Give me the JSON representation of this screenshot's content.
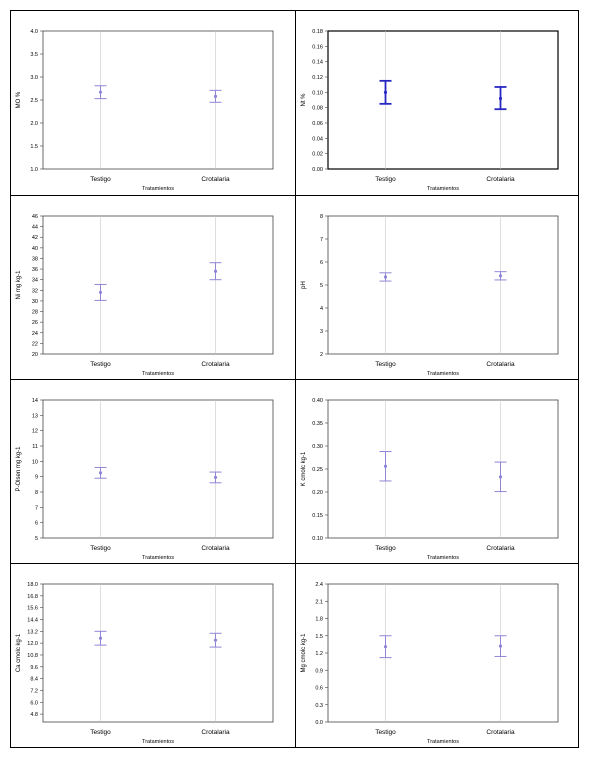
{
  "chart_data": [
    {
      "type": "errorbar",
      "xlabel": "Tratamientos",
      "ylabel": "MO %",
      "categories": [
        "Testigo",
        "Crotalaria"
      ],
      "ylim": [
        1.0,
        4.0
      ],
      "yticks": [
        "1.0",
        "1.5",
        "2.0",
        "2.5",
        "3.0",
        "3.5",
        "4.0"
      ],
      "means": [
        2.67,
        2.58
      ],
      "lower": [
        2.53,
        2.45
      ],
      "upper": [
        2.81,
        2.71
      ],
      "color": "#8f86d6"
    },
    {
      "type": "errorbar",
      "xlabel": "Tratamientos",
      "ylabel": "Nt %",
      "categories": [
        "Testigo",
        "Crotalaria"
      ],
      "ylim": [
        0.0,
        0.18
      ],
      "yticks": [
        "0.00",
        "0.02",
        "0.04",
        "0.06",
        "0.08",
        "0.10",
        "0.12",
        "0.14",
        "0.16",
        "0.18"
      ],
      "means": [
        0.1,
        0.092
      ],
      "lower": [
        0.085,
        0.078
      ],
      "upper": [
        0.115,
        0.107
      ],
      "color": "#2727c2"
    },
    {
      "type": "errorbar",
      "xlabel": "Tratamientos",
      "ylabel": "Ni mg kg-1",
      "categories": [
        "Testigo",
        "Crotalaria"
      ],
      "ylim": [
        20,
        46
      ],
      "yticks": [
        "20",
        "22",
        "24",
        "26",
        "28",
        "30",
        "32",
        "34",
        "36",
        "38",
        "40",
        "42",
        "44",
        "46"
      ],
      "means": [
        31.6,
        35.6
      ],
      "lower": [
        30.1,
        34.0
      ],
      "upper": [
        33.1,
        37.2
      ],
      "color": "#8f86d6"
    },
    {
      "type": "errorbar",
      "xlabel": "Tratamientos",
      "ylabel": "pH",
      "categories": [
        "Testigo",
        "Crotalaria"
      ],
      "ylim": [
        2,
        8
      ],
      "yticks": [
        "2",
        "3",
        "4",
        "5",
        "6",
        "7",
        "8"
      ],
      "means": [
        5.35,
        5.4
      ],
      "lower": [
        5.17,
        5.22
      ],
      "upper": [
        5.53,
        5.58
      ],
      "color": "#8f86d6"
    },
    {
      "type": "errorbar",
      "xlabel": "Tratamientos",
      "ylabel": "P-Olsen mg kg-1",
      "categories": [
        "Testigo",
        "Crotalaria"
      ],
      "ylim": [
        5,
        14
      ],
      "yticks": [
        "5",
        "6",
        "7",
        "8",
        "9",
        "10",
        "11",
        "12",
        "13",
        "14"
      ],
      "means": [
        9.25,
        8.95
      ],
      "lower": [
        8.9,
        8.6
      ],
      "upper": [
        9.6,
        9.3
      ],
      "color": "#8f86d6"
    },
    {
      "type": "errorbar",
      "xlabel": "Tratamientos",
      "ylabel": "K cmolc kg-1",
      "categories": [
        "Testigo",
        "Crotalaria"
      ],
      "ylim": [
        0.1,
        0.4
      ],
      "yticks": [
        "0.10",
        "0.15",
        "0.20",
        "0.25",
        "0.30",
        "0.35",
        "0.40"
      ],
      "means": [
        0.256,
        0.233
      ],
      "lower": [
        0.224,
        0.201
      ],
      "upper": [
        0.288,
        0.265
      ],
      "color": "#8f86d6"
    },
    {
      "type": "errorbar",
      "xlabel": "Tratamientos",
      "ylabel": "Ca cmolc kg-1",
      "categories": [
        "Testigo",
        "Crotalaria"
      ],
      "ylim": [
        4.0,
        18.0
      ],
      "yticks": [
        "4.8",
        "6.0",
        "7.2",
        "8.4",
        "9.6",
        "10.8",
        "12.0",
        "13.2",
        "14.4",
        "15.6",
        "16.8",
        "18.0"
      ],
      "means": [
        12.5,
        12.3
      ],
      "lower": [
        11.8,
        11.6
      ],
      "upper": [
        13.2,
        13.0
      ],
      "color": "#8f86d6"
    },
    {
      "type": "errorbar",
      "xlabel": "Tratamientos",
      "ylabel": "Mg cmolc kg-1",
      "categories": [
        "Testigo",
        "Crotalaria"
      ],
      "ylim": [
        0.0,
        2.4
      ],
      "yticks": [
        "0.0",
        "0.3",
        "0.6",
        "0.9",
        "1.2",
        "1.5",
        "1.8",
        "2.1",
        "2.4"
      ],
      "means": [
        1.31,
        1.32
      ],
      "lower": [
        1.12,
        1.14
      ],
      "upper": [
        1.5,
        1.5
      ],
      "color": "#8f86d6"
    }
  ]
}
